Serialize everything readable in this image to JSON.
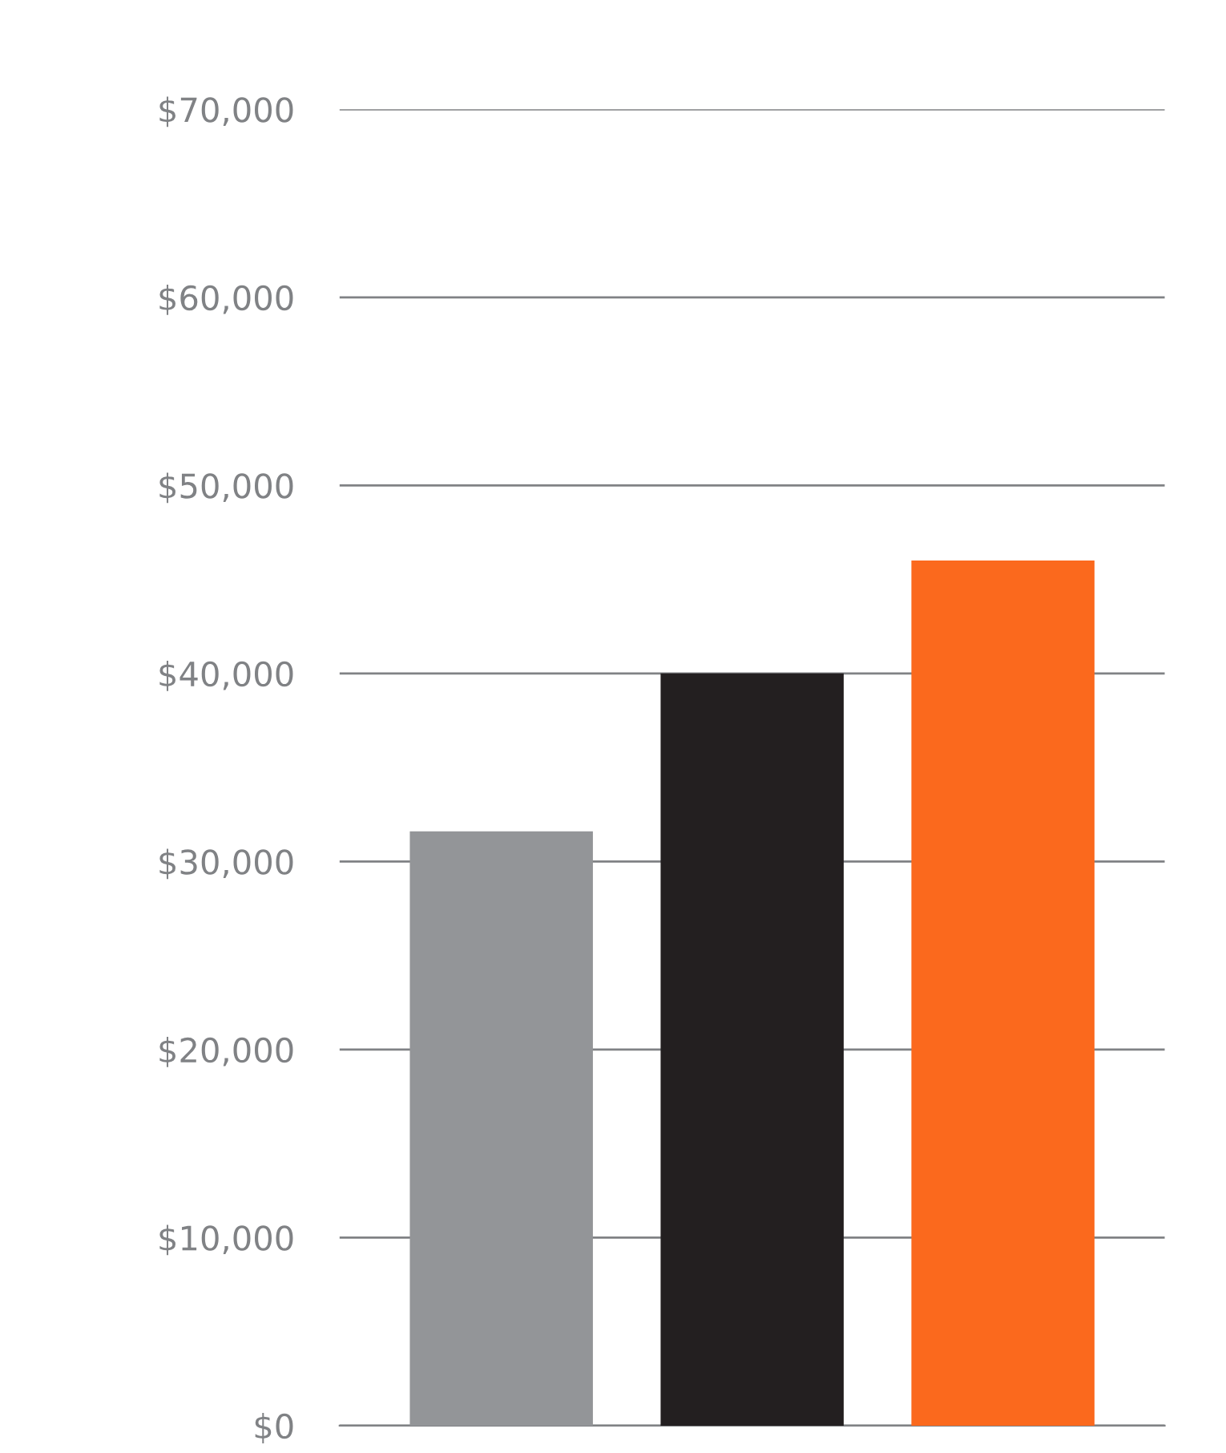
{
  "chart_data": {
    "type": "bar",
    "categories": [
      null,
      null,
      null
    ],
    "values": [
      31600,
      40000,
      46000
    ],
    "colors": [
      "#939598",
      "#231f20",
      "#fb691d"
    ],
    "ylim": [
      0,
      70000
    ],
    "yticks": [
      {
        "value": 0,
        "label": "$0"
      },
      {
        "value": 10000,
        "label": "$10,000"
      },
      {
        "value": 20000,
        "label": "$20,000"
      },
      {
        "value": 30000,
        "label": "$30,000"
      },
      {
        "value": 40000,
        "label": "$40,000"
      },
      {
        "value": 50000,
        "label": "$50,000"
      },
      {
        "value": 60000,
        "label": "$60,000"
      },
      {
        "value": 70000,
        "label": "$70,000"
      }
    ],
    "grid": "y",
    "tick_labels": "y"
  }
}
